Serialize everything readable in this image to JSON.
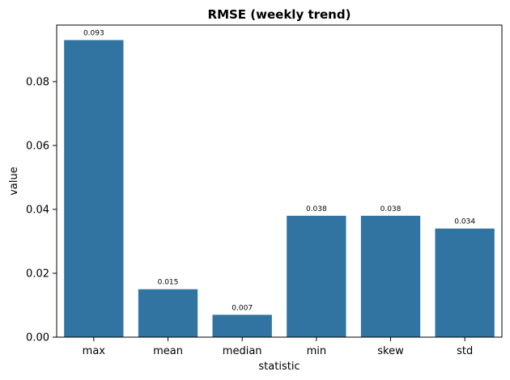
{
  "chart_data": {
    "type": "bar",
    "title": "RMSE (weekly trend)",
    "xlabel": "statistic",
    "ylabel": "value",
    "categories": [
      "max",
      "mean",
      "median",
      "min",
      "skew",
      "std"
    ],
    "values": [
      0.093,
      0.015,
      0.007,
      0.038,
      0.038,
      0.034
    ],
    "data_labels": [
      "0.093",
      "0.015",
      "0.007",
      "0.038",
      "0.038",
      "0.034"
    ],
    "ylim": [
      0,
      0.0977
    ],
    "yticks": [
      0.0,
      0.02,
      0.04,
      0.06,
      0.08
    ],
    "ytick_labels": [
      "0.00",
      "0.02",
      "0.04",
      "0.06",
      "0.08"
    ],
    "bar_color": "#3274a1",
    "grid": false,
    "legend": "none"
  }
}
